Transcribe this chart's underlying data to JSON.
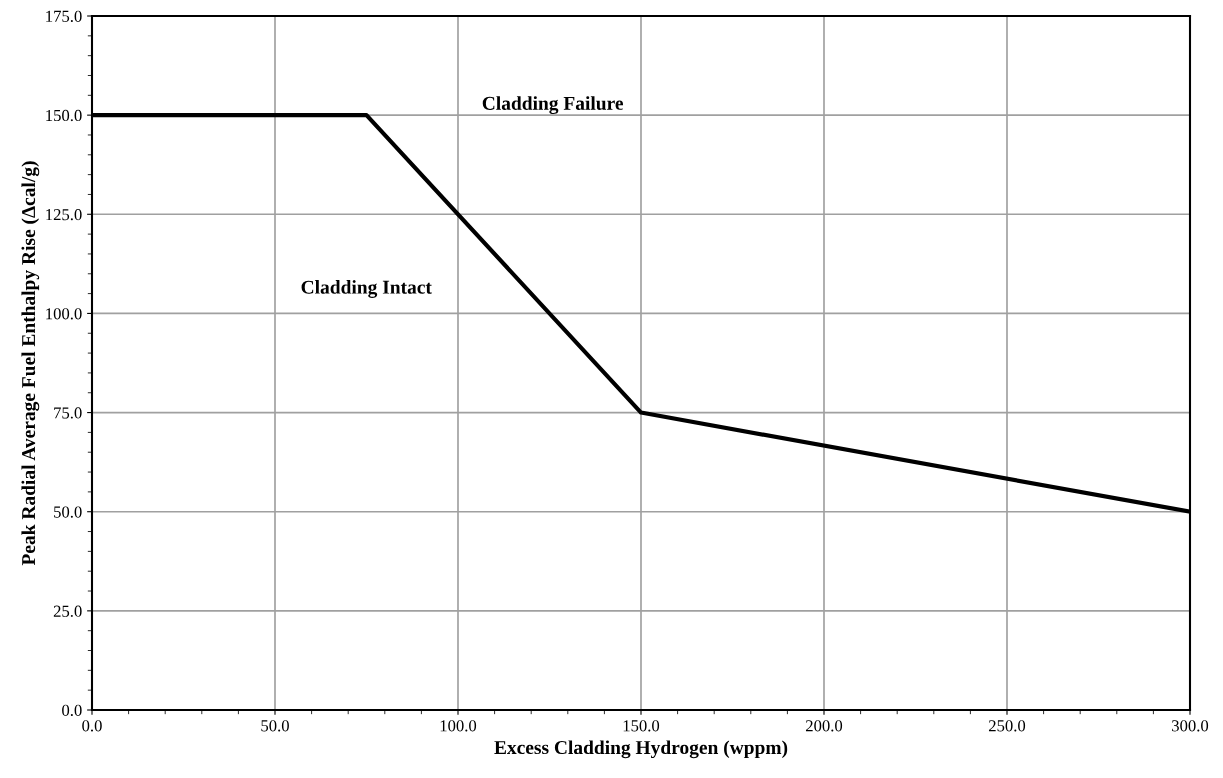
{
  "chart_data": {
    "type": "line",
    "xlabel": "Excess Cladding Hydrogen (wppm)",
    "ylabel": "Peak Radial Average Fuel Enthalpy Rise (Δcal/g)",
    "x": [
      0,
      75,
      150,
      300
    ],
    "series": [
      {
        "color": "#000000",
        "values": [
          150,
          150,
          75,
          50
        ]
      }
    ],
    "xlim": [
      0,
      300
    ],
    "xticks": [
      {
        "value": 0,
        "label": "0.0"
      },
      {
        "value": 50,
        "label": "50.0"
      },
      {
        "value": 100,
        "label": "100.0"
      },
      {
        "value": 150,
        "label": "150.0"
      },
      {
        "value": 200,
        "label": "200.0"
      },
      {
        "value": 250,
        "label": "250.0"
      },
      {
        "value": 300,
        "label": "300.0"
      }
    ],
    "ylim": [
      0,
      175
    ],
    "yticks": [
      {
        "value": 0,
        "label": "0.0"
      },
      {
        "value": 25,
        "label": "25.0"
      },
      {
        "value": 50,
        "label": "50.0"
      },
      {
        "value": 75,
        "label": "75.0"
      },
      {
        "value": 100,
        "label": "100.0"
      },
      {
        "value": 125,
        "label": "125.0"
      },
      {
        "value": 150,
        "label": "150.0"
      },
      {
        "value": 175,
        "label": "175.0"
      }
    ],
    "annotations": [
      "Cladding Failure",
      "Cladding Intact"
    ],
    "grid": true,
    "legend": false,
    "marker": "none",
    "line_style": "solid"
  }
}
